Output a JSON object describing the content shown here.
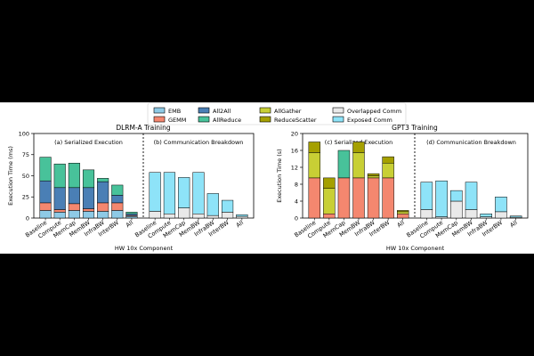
{
  "legend": [
    {
      "label": "EMB",
      "color": "#8ecae6"
    },
    {
      "label": "GEMM",
      "color": "#f4876f"
    },
    {
      "label": "All2All",
      "color": "#4a7fb5"
    },
    {
      "label": "AllReduce",
      "color": "#48c29a"
    },
    {
      "label": "AllGather",
      "color": "#c8cf35"
    },
    {
      "label": "ReduceScatter",
      "color": "#a5a000"
    },
    {
      "label": "Overlapped Comm",
      "color": "#e9e9e9"
    },
    {
      "label": "Exposed Comm",
      "color": "#8ee3f8"
    }
  ],
  "chart_data": [
    {
      "type": "bar",
      "stacked": true,
      "title": "DLRM-A Training",
      "xlabel": "HW 10x Component",
      "ylabel": "Execution Time (ms)",
      "ylim": [
        0,
        100
      ],
      "yticks": [
        "0",
        "25",
        "50",
        "75",
        "100"
      ],
      "panels": [
        {
          "label": "(a) Serialized Execution",
          "categories": [
            "Baseline",
            "Compute",
            "MemCap",
            "MemBW",
            "InfraBW",
            "InterBW",
            "All"
          ],
          "series": [
            {
              "name": "EMB",
              "values": [
                9,
                7,
                9,
                8,
                8,
                9,
                2
              ]
            },
            {
              "name": "GEMM",
              "values": [
                9,
                3,
                8,
                3,
                10,
                9,
                1
              ]
            },
            {
              "name": "All2All",
              "values": [
                26,
                26,
                19,
                25,
                25,
                9,
                2
              ]
            },
            {
              "name": "AllReduce",
              "values": [
                28,
                28,
                29,
                21,
                4,
                12,
                2
              ]
            }
          ]
        },
        {
          "label": "(b) Communication Breakdown",
          "categories": [
            "Baseline",
            "Compute",
            "MemCap",
            "MemBW",
            "InfraBW",
            "InterBW",
            "All"
          ],
          "series": [
            {
              "name": "Overlapped Comm",
              "values": [
                8,
                5,
                12,
                5,
                3,
                7,
                2
              ]
            },
            {
              "name": "Exposed Comm",
              "values": [
                46,
                49,
                36,
                49,
                26,
                14,
                2
              ]
            }
          ]
        }
      ]
    },
    {
      "type": "bar",
      "stacked": true,
      "title": "GPT3 Training",
      "xlabel": "HW 10x Component",
      "ylabel": "Execution Time (s)",
      "ylim": [
        0,
        20
      ],
      "yticks": [
        "0",
        "4",
        "8",
        "12",
        "16",
        "20"
      ],
      "panels": [
        {
          "label": "(c) Serialized Execution",
          "categories": [
            "Baseline",
            "Compute",
            "MemCap",
            "MemBW",
            "InfraBW",
            "InterBW",
            "All"
          ],
          "series": [
            {
              "name": "GEMM",
              "values": [
                9.5,
                1,
                9.5,
                9.5,
                9.5,
                9.5,
                1
              ]
            },
            {
              "name": "AllReduce",
              "values": [
                0,
                0,
                6.5,
                0,
                0,
                0,
                0
              ]
            },
            {
              "name": "AllGather",
              "values": [
                6,
                6,
                0,
                6,
                0.5,
                3.5,
                0.5
              ]
            },
            {
              "name": "ReduceScatter",
              "values": [
                2.5,
                2.5,
                0,
                2.5,
                0.5,
                1.5,
                0.3
              ]
            }
          ]
        },
        {
          "label": "(d) Communication Breakdown",
          "categories": [
            "Baseline",
            "Compute",
            "MemCap",
            "MemBW",
            "InfraBW",
            "InterBW",
            "All"
          ],
          "series": [
            {
              "name": "Overlapped Comm",
              "values": [
                2,
                0.3,
                4,
                2,
                0.3,
                1.5,
                0.2
              ]
            },
            {
              "name": "Exposed Comm",
              "values": [
                6.5,
                8.5,
                2.5,
                6.5,
                0.7,
                3.5,
                0.3
              ]
            }
          ]
        }
      ]
    }
  ]
}
